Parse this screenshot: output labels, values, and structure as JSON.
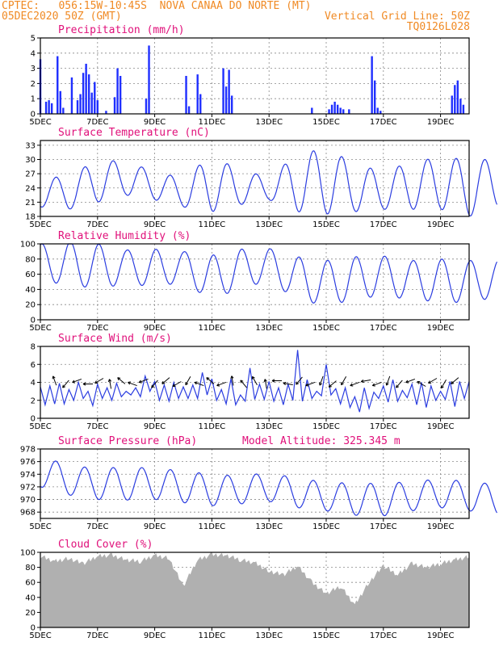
{
  "header": {
    "line1_left": "CPTEC:   056:15W-10:45S  NOVA CANAA DO NORTE (MT)",
    "line2_left": "05DEC2020 50Z (GMT)",
    "line2_right": "Vertical Grid Line: 50Z",
    "line3_right": "TQ0126L028"
  },
  "colors": {
    "header": "#f08a24",
    "title": "#e0107a",
    "line": "#2b3de0",
    "bar": "#1f2fff",
    "cloud": "#b0b0b0",
    "grid": "#888888"
  },
  "chart_data": [
    {
      "type": "bar",
      "title": "Precipitation (mm/h)",
      "ylim": [
        0,
        5
      ],
      "yticks": [
        0,
        1,
        2,
        3,
        4,
        5
      ],
      "xlim_days": [
        5,
        20
      ],
      "xticks": [
        "5DEC",
        "7DEC",
        "9DEC",
        "11DEC",
        "13DEC",
        "15DEC",
        "17DEC",
        "19DEC"
      ],
      "x_day": [
        5.0,
        5.2,
        5.3,
        5.4,
        5.6,
        5.7,
        5.8,
        6.1,
        6.3,
        6.4,
        6.5,
        6.6,
        6.7,
        6.8,
        6.9,
        7.0,
        7.3,
        7.6,
        7.7,
        7.8,
        8.7,
        8.8,
        10.1,
        10.2,
        10.5,
        10.6,
        11.4,
        11.5,
        11.6,
        11.7,
        14.5,
        15.1,
        15.2,
        15.3,
        15.4,
        15.5,
        15.6,
        15.8,
        16.6,
        16.7,
        16.8,
        16.9,
        19.4,
        19.5,
        19.6,
        19.7,
        19.8
      ],
      "values": [
        3.6,
        0.8,
        0.9,
        0.7,
        3.8,
        1.5,
        0.4,
        2.4,
        0.9,
        1.3,
        2.7,
        3.3,
        2.6,
        1.4,
        2.1,
        0.9,
        0.2,
        1.1,
        3.0,
        2.5,
        1.0,
        4.5,
        2.5,
        0.5,
        2.6,
        1.3,
        3.0,
        1.8,
        2.9,
        1.2,
        0.4,
        0.3,
        0.6,
        0.8,
        0.6,
        0.4,
        0.3,
        0.3,
        3.8,
        2.2,
        0.4,
        0.2,
        1.2,
        1.9,
        2.2,
        1.0,
        0.6
      ]
    },
    {
      "type": "line",
      "title": "Surface Temperature (nC)",
      "ylim": [
        18,
        34
      ],
      "yticks": [
        18,
        21,
        24,
        27,
        30,
        33
      ],
      "xlim_days": [
        5,
        20
      ],
      "xticks": [
        "5DEC",
        "7DEC",
        "9DEC",
        "11DEC",
        "13DEC",
        "15DEC",
        "17DEC",
        "19DEC"
      ],
      "mean": [
        23,
        23,
        25.5,
        26,
        24.5,
        23,
        25,
        24,
        24,
        25,
        25.5,
        24,
        23.5,
        24.5,
        25,
        24,
        25
      ],
      "amp": [
        3,
        3.5,
        4.5,
        3.5,
        3,
        3,
        6,
        3.5,
        2.5,
        6,
        7,
        5,
        4,
        5,
        5.5,
        6,
        5
      ]
    },
    {
      "type": "line",
      "title": "Relative Humidity (%)",
      "ylim": [
        0,
        100
      ],
      "yticks": [
        0,
        20,
        40,
        60,
        80,
        100
      ],
      "xlim_days": [
        5,
        20
      ],
      "xticks": [
        "5DEC",
        "7DEC",
        "9DEC",
        "11DEC",
        "13DEC",
        "15DEC",
        "17DEC",
        "19DEC"
      ],
      "mean": [
        75,
        75,
        70,
        70,
        68,
        70,
        55,
        68,
        72,
        55,
        48,
        55,
        58,
        52,
        52,
        50,
        55
      ],
      "amp": [
        25,
        28,
        30,
        22,
        25,
        20,
        30,
        25,
        22,
        28,
        30,
        28,
        26,
        26,
        28,
        28,
        24
      ]
    },
    {
      "type": "line",
      "title": "Surface Wind (m/s)",
      "ylim": [
        0,
        8
      ],
      "yticks": [
        0,
        2,
        4,
        6,
        8
      ],
      "xlim_days": [
        5,
        20
      ],
      "xticks": [
        "5DEC",
        "7DEC",
        "9DEC",
        "11DEC",
        "13DEC",
        "15DEC",
        "17DEC",
        "19DEC"
      ],
      "values": [
        3.5,
        1.5,
        3.6,
        1.6,
        3.9,
        1.6,
        3.2,
        2.0,
        4.0,
        2.2,
        3.0,
        1.4,
        3.8,
        2.2,
        3.4,
        2.0,
        3.9,
        2.4,
        3.0,
        2.6,
        3.4,
        2.4,
        4.7,
        3.0,
        4.1,
        2.0,
        3.7,
        1.9,
        4.0,
        2.2,
        3.5,
        2.2,
        3.7,
        2.2,
        5.1,
        2.6,
        4.4,
        2.0,
        3.2,
        1.6,
        4.4,
        1.5,
        2.6,
        1.9,
        5.6,
        2.1,
        3.8,
        2.1,
        4.1,
        1.9,
        3.4,
        1.5,
        3.8,
        2.0,
        7.6,
        1.9,
        4.3,
        2.2,
        3.0,
        2.5,
        6.0,
        2.6,
        3.3,
        1.6,
        3.4,
        1.2,
        2.4,
        0.7,
        3.4,
        1.1,
        2.9,
        2.2,
        3.6,
        1.8,
        4.3,
        1.9,
        3.1,
        2.3,
        3.8,
        1.5,
        4.0,
        1.2,
        3.6,
        2.0,
        3.0,
        2.1,
        4.1,
        1.3,
        4.1,
        2.2,
        4.1
      ],
      "arrow_angles": [
        110,
        230,
        200,
        180,
        210,
        100,
        140,
        160,
        200,
        230,
        220,
        210,
        240,
        160,
        140,
        200,
        100,
        130,
        120,
        100,
        180,
        170,
        230,
        200,
        250,
        220,
        240,
        200,
        190,
        200,
        250,
        230,
        200,
        150,
        210,
        240,
        220
      ]
    },
    {
      "type": "line",
      "title": "Surface Pressure (hPa)",
      "annotation": "Model Altitude: 325.345 m",
      "ylim": [
        967,
        978
      ],
      "yticks": [
        968,
        970,
        972,
        974,
        976,
        978
      ],
      "xlim_days": [
        5,
        20
      ],
      "xticks": [
        "5DEC",
        "7DEC",
        "9DEC",
        "11DEC",
        "13DEC",
        "15DEC",
        "17DEC",
        "19DEC"
      ],
      "mean": [
        974.5,
        973,
        972.5,
        972.5,
        972.5,
        972,
        971.5,
        971.5,
        972,
        971,
        970.5,
        970,
        970,
        970.5,
        971,
        970.5,
        970
      ],
      "amp": [
        2.5,
        2.3,
        2.5,
        2.6,
        2.5,
        2.5,
        2.5,
        2.2,
        2.3,
        2.3,
        2.3,
        2.5,
        2.6,
        2.3,
        2.3,
        2.3,
        2.4
      ]
    },
    {
      "type": "area",
      "title": "Cloud Cover (%)",
      "ylim": [
        0,
        100
      ],
      "yticks": [
        0,
        20,
        40,
        60,
        80,
        100
      ],
      "xlim_days": [
        5,
        20
      ],
      "xticks": [
        "5DEC",
        "7DEC",
        "9DEC",
        "11DEC",
        "13DEC",
        "15DEC",
        "17DEC",
        "19DEC"
      ],
      "x_day": [
        5.0,
        5.5,
        6.0,
        6.5,
        7.0,
        7.5,
        8.0,
        8.5,
        9.0,
        9.5,
        10.0,
        10.5,
        11.0,
        11.5,
        12.0,
        12.5,
        13.0,
        13.5,
        14.0,
        14.5,
        15.0,
        15.5,
        16.0,
        16.5,
        17.0,
        17.5,
        18.0,
        18.5,
        19.0,
        19.5,
        20.0
      ],
      "values": [
        95,
        88,
        92,
        85,
        95,
        96,
        90,
        88,
        96,
        92,
        55,
        90,
        97,
        96,
        90,
        86,
        75,
        70,
        82,
        60,
        45,
        55,
        30,
        60,
        82,
        70,
        85,
        80,
        85,
        90,
        94
      ]
    }
  ]
}
